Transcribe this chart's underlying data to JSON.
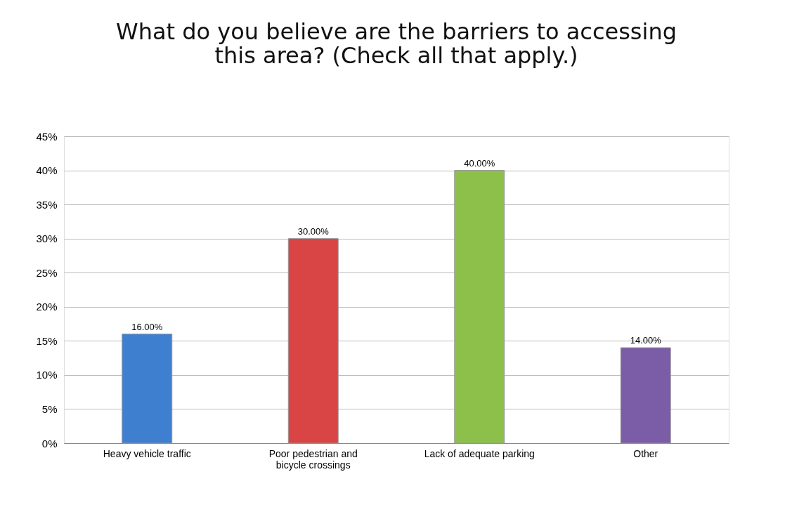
{
  "chart_data": {
    "type": "bar",
    "title": "What do you believe are the barriers to accessing this area? (Check all that apply.)",
    "categories": [
      "Heavy vehicle traffic",
      "Poor pedestrian and bicycle crossings",
      "Lack of adequate parking",
      "Other"
    ],
    "values": [
      16,
      30,
      40,
      14
    ],
    "colors": [
      "#3f7fcf",
      "#d94444",
      "#8cc04a",
      "#7b5ca6"
    ],
    "value_labels": [
      "16.00%",
      "30.00%",
      "40.00%",
      "14.00%"
    ],
    "ylim": [
      0,
      45
    ],
    "yticks": [
      {
        "value": 0,
        "label": "0%"
      },
      {
        "value": 5,
        "label": "5%"
      },
      {
        "value": 10,
        "label": "10%"
      },
      {
        "value": 15,
        "label": "15%"
      },
      {
        "value": 20,
        "label": "20%"
      },
      {
        "value": 25,
        "label": "25%"
      },
      {
        "value": 30,
        "label": "30%"
      },
      {
        "value": 35,
        "label": "35%"
      },
      {
        "value": 40,
        "label": "40%"
      },
      {
        "value": 45,
        "label": "45%"
      }
    ],
    "grid": "y"
  }
}
